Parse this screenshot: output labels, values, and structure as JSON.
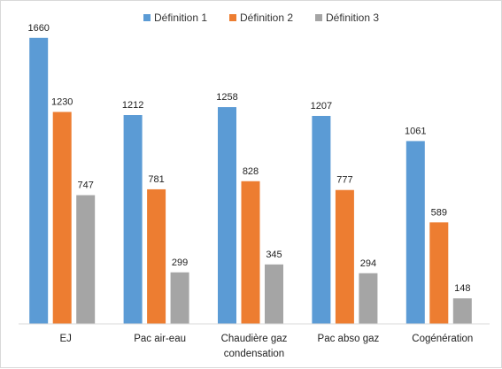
{
  "chart_data": {
    "type": "bar",
    "categories": [
      [
        "EJ"
      ],
      [
        "Pac air-eau"
      ],
      [
        "Chaudière gaz",
        "condensation"
      ],
      [
        "Pac abso gaz"
      ],
      [
        "Cogénération"
      ]
    ],
    "series": [
      {
        "name": "Définition 1",
        "color": "#5b9bd5",
        "values": [
          1660,
          1212,
          1258,
          1207,
          1061
        ]
      },
      {
        "name": "Définition 2",
        "color": "#ed7d31",
        "values": [
          1230,
          781,
          828,
          777,
          589
        ]
      },
      {
        "name": "Définition 3",
        "color": "#a5a5a5",
        "values": [
          747,
          299,
          345,
          294,
          148
        ]
      }
    ],
    "ylim": [
      0,
      1700
    ],
    "grid": false,
    "legend": "top-center"
  }
}
